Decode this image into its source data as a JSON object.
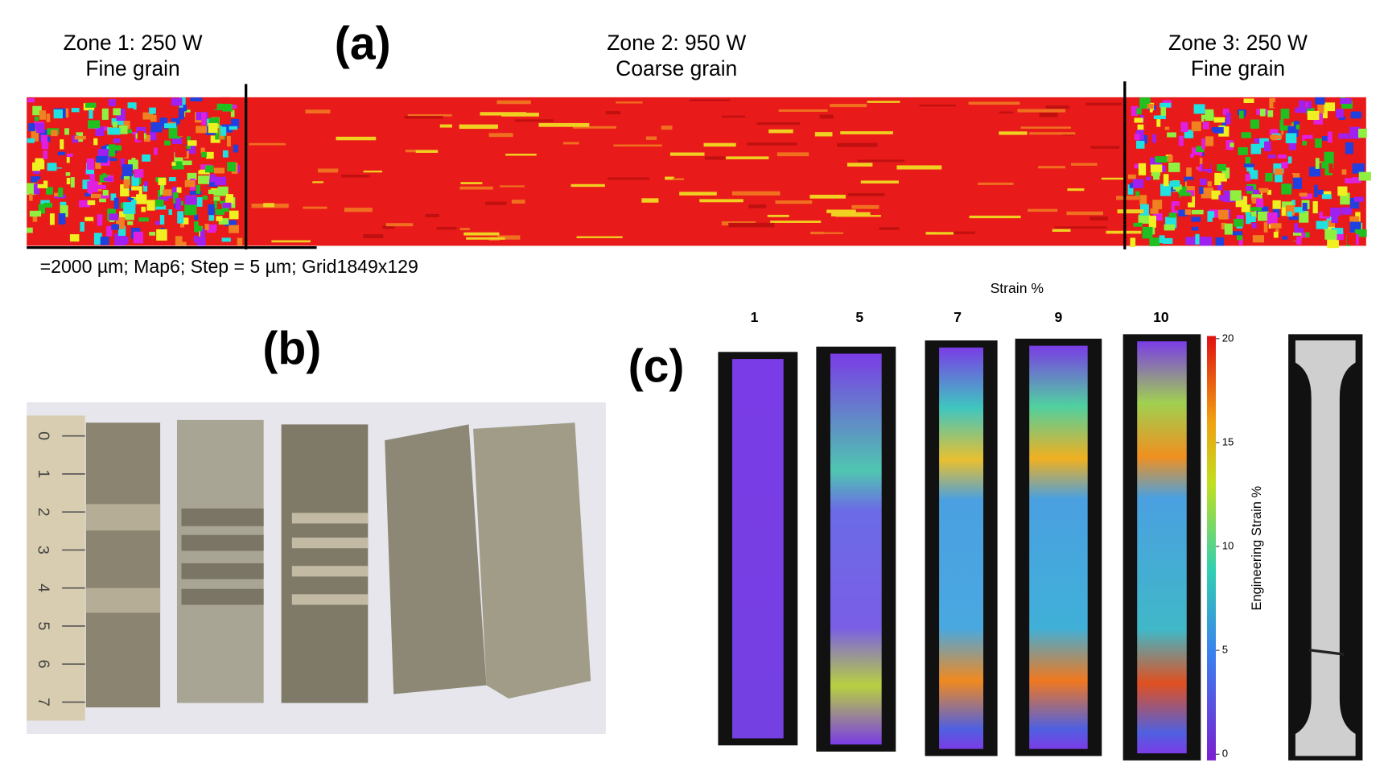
{
  "panel_a": {
    "label": "(a)",
    "zones": [
      {
        "title": "Zone 1: 250 W",
        "subtitle": "Fine grain"
      },
      {
        "title": "Zone 2: 950 W",
        "subtitle": "Coarse grain"
      },
      {
        "title": "Zone 3: 250 W",
        "subtitle": "Fine grain"
      }
    ],
    "caption": "=2000 µm; Map6; Step = 5 µm; Grid1849x129"
  },
  "panel_b": {
    "label": "(b)",
    "ruler_ticks": [
      0,
      1,
      2,
      3,
      4,
      5,
      6,
      7
    ]
  },
  "panel_c": {
    "label": "(c)",
    "header": "Strain %",
    "strain_levels": [
      1,
      5,
      7,
      9,
      10
    ],
    "colorbar": {
      "title": "Engineering Strain %",
      "lim": [
        0,
        20
      ],
      "ticks": [
        0,
        5,
        10,
        15,
        20
      ]
    }
  }
}
